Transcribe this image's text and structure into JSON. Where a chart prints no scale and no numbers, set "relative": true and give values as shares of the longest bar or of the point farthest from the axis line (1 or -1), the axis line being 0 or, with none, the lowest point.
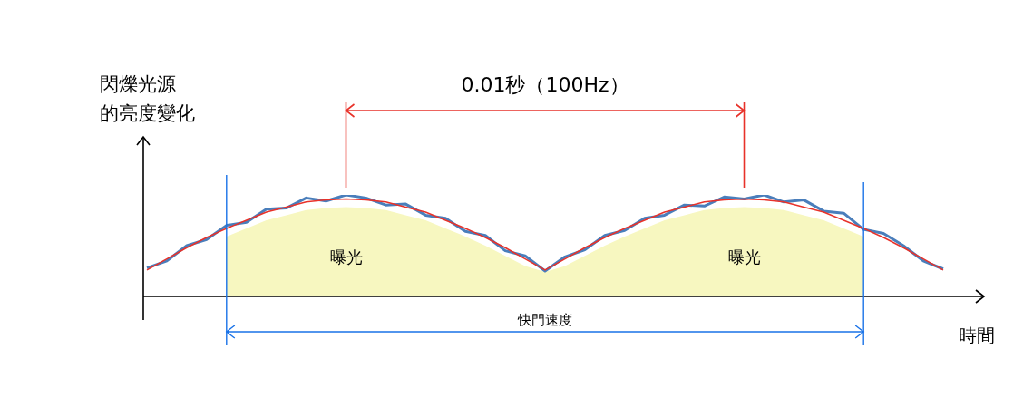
{
  "chart_data": {
    "type": "line",
    "relative": true,
    "marker": "none",
    "ylabel": "閃爍光源的亮度變化",
    "xlabel": "時間",
    "categories": [
      null,
      null,
      null,
      null,
      null,
      null,
      null,
      null,
      null,
      null,
      null,
      null,
      null,
      null,
      null,
      null,
      null,
      null,
      null,
      null,
      null,
      null,
      null,
      null,
      null,
      null,
      null,
      null,
      null,
      null,
      null,
      null,
      null,
      null,
      null,
      null,
      null,
      null,
      null,
      null,
      null
    ],
    "series": [
      {
        "type": "area",
        "color": "#f7f7c0",
        "values": [
          null,
          null,
          null,
          null,
          0.59,
          0.67,
          0.75,
          0.8,
          0.85,
          0.87,
          0.88,
          0.87,
          0.85,
          0.8,
          0.75,
          0.67,
          0.59,
          0.5,
          0.4,
          0.3,
          0.24,
          0.3,
          0.4,
          0.5,
          0.59,
          0.67,
          0.75,
          0.8,
          0.85,
          0.87,
          0.88,
          0.87,
          0.85,
          0.8,
          0.75,
          0.67,
          0.59,
          null,
          null,
          null,
          null
        ]
      },
      {
        "color": "#4a7ebb",
        "values": [
          0.28,
          0.35,
          0.5,
          0.56,
          0.7,
          0.73,
          0.86,
          0.87,
          0.97,
          0.94,
          1,
          0.97,
          0.9,
          0.91,
          0.8,
          0.77,
          0.64,
          0.6,
          0.45,
          0.4,
          0.25,
          0.39,
          0.46,
          0.6,
          0.65,
          0.77,
          0.8,
          0.9,
          0.89,
          0.98,
          0.96,
          1,
          0.93,
          0.95,
          0.84,
          0.82,
          0.66,
          0.62,
          0.5,
          0.35,
          0.27
        ]
      },
      {
        "color": "#e8322a",
        "values": [
          0.26,
          0.37,
          0.48,
          0.58,
          0.67,
          0.75,
          0.83,
          0.88,
          0.93,
          0.95,
          0.96,
          0.95,
          0.93,
          0.88,
          0.83,
          0.75,
          0.67,
          0.58,
          0.48,
          0.37,
          0.26,
          0.37,
          0.48,
          0.58,
          0.67,
          0.75,
          0.83,
          0.88,
          0.93,
          0.95,
          0.96,
          0.95,
          0.93,
          0.88,
          0.83,
          0.75,
          0.67,
          0.58,
          0.48,
          0.37,
          0.26
        ]
      }
    ],
    "annotations": [
      "0.01秒（100Hz）",
      "曝光",
      "曝光",
      "快門速度"
    ]
  }
}
